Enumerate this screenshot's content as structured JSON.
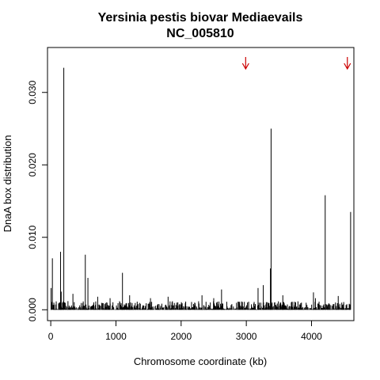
{
  "chart_data": {
    "type": "bar",
    "title": "Yersinia pestis biovar Mediaevails",
    "subtitle": "NC_005810",
    "xlabel": "Chromosome coordinate (kb)",
    "ylabel": "DnaA box distribution",
    "xlim": [
      -50,
      4650
    ],
    "ylim": [
      -0.0015,
      0.0362
    ],
    "x_ticks": [
      0,
      1000,
      2000,
      3000,
      4000
    ],
    "y_ticks": [
      0.0,
      0.01,
      0.02,
      0.03
    ],
    "x_tick_labels": [
      "0",
      "1000",
      "2000",
      "3000",
      "4000"
    ],
    "y_tick_labels": [
      "0.000",
      "0.010",
      "0.020",
      "0.030"
    ],
    "bar_color": "#000000",
    "arrow_color": "#cc0000",
    "arrows_x": [
      2990,
      4550
    ],
    "peaks": [
      {
        "x": 5,
        "y": 0.003
      },
      {
        "x": 25,
        "y": 0.0071
      },
      {
        "x": 150,
        "y": 0.008
      },
      {
        "x": 160,
        "y": 0.0025
      },
      {
        "x": 200,
        "y": 0.0334
      },
      {
        "x": 340,
        "y": 0.0022
      },
      {
        "x": 530,
        "y": 0.0076
      },
      {
        "x": 570,
        "y": 0.0044
      },
      {
        "x": 720,
        "y": 0.0018
      },
      {
        "x": 910,
        "y": 0.0016
      },
      {
        "x": 1100,
        "y": 0.0051
      },
      {
        "x": 1210,
        "y": 0.002
      },
      {
        "x": 1530,
        "y": 0.0016
      },
      {
        "x": 1800,
        "y": 0.0018
      },
      {
        "x": 2320,
        "y": 0.002
      },
      {
        "x": 2500,
        "y": 0.0016
      },
      {
        "x": 2620,
        "y": 0.0028
      },
      {
        "x": 3180,
        "y": 0.003
      },
      {
        "x": 3260,
        "y": 0.0034
      },
      {
        "x": 3370,
        "y": 0.0057
      },
      {
        "x": 3380,
        "y": 0.025
      },
      {
        "x": 3560,
        "y": 0.002
      },
      {
        "x": 4030,
        "y": 0.0024
      },
      {
        "x": 4060,
        "y": 0.0016
      },
      {
        "x": 4210,
        "y": 0.0158
      },
      {
        "x": 4410,
        "y": 0.0019
      },
      {
        "x": 4600,
        "y": 0.0135
      }
    ],
    "baseline_max": 0.0012,
    "x_max_kb": 4600
  }
}
